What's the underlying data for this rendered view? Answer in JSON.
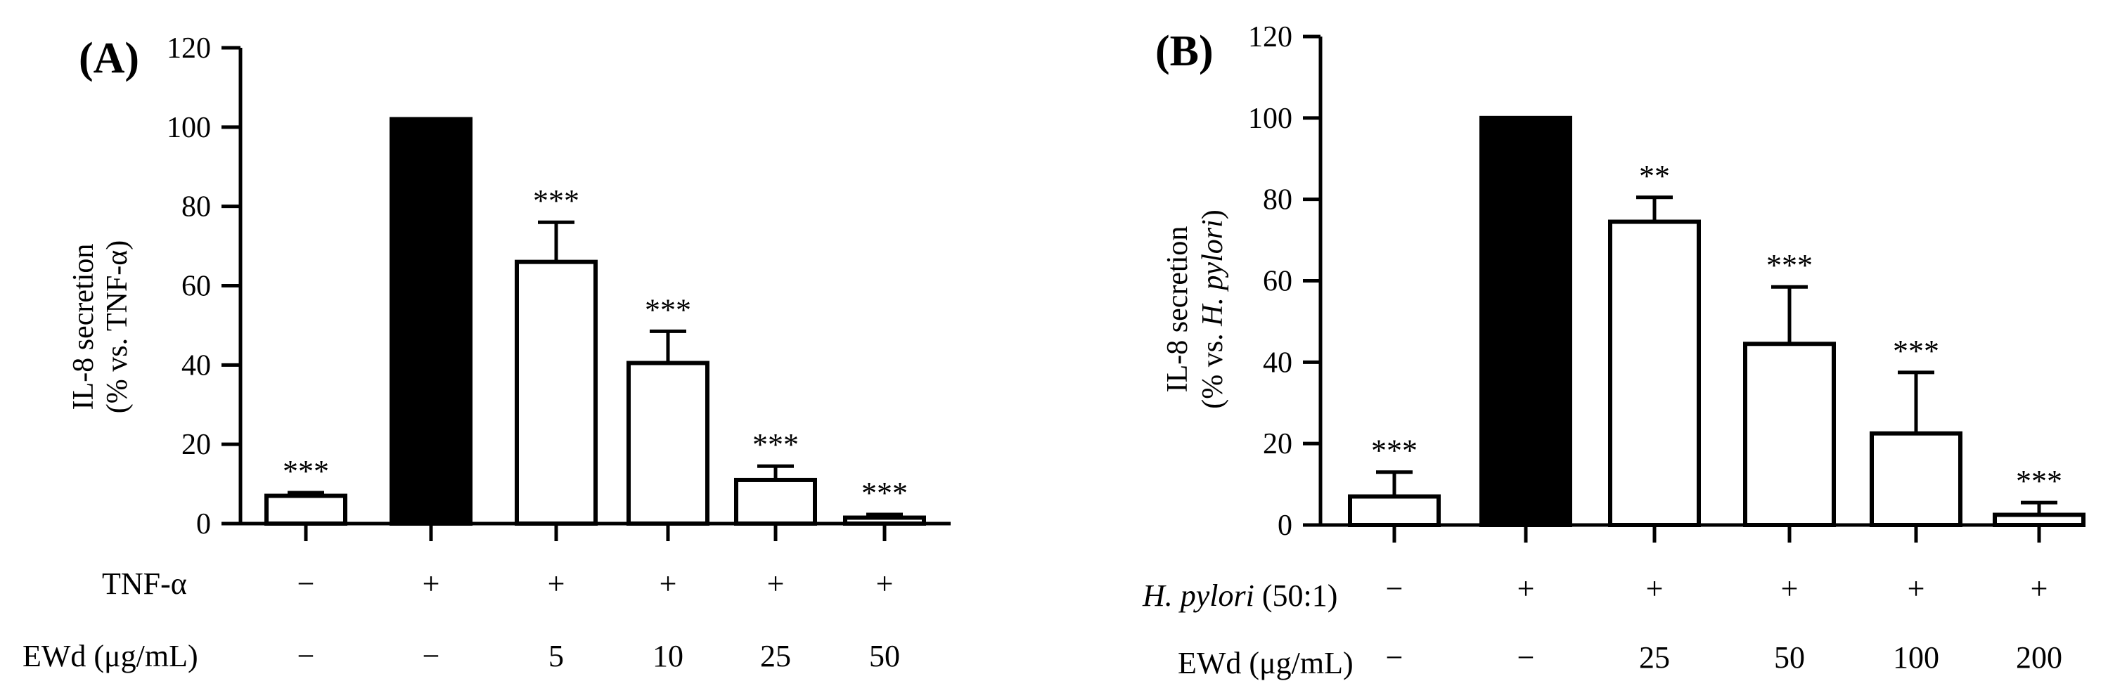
{
  "chart_data": [
    {
      "panel": "(A)",
      "type": "bar",
      "ylabel_line1": "IL-8 secretion",
      "ylabel_line2": "(% vs. TNF-α)",
      "ylim": [
        0,
        120
      ],
      "yticks": [
        "0",
        "20",
        "40",
        "60",
        "80",
        "100",
        "120"
      ],
      "values": [
        7,
        102,
        66,
        40.5,
        11,
        1.5
      ],
      "errors": [
        0.8,
        0,
        10,
        8,
        3.5,
        0.8
      ],
      "fill": [
        "white",
        "black",
        "white",
        "white",
        "white",
        "white"
      ],
      "significance": [
        "***",
        "",
        "***",
        "***",
        "***",
        "***"
      ],
      "row1_label": "TNF-α",
      "row1_values": [
        "−",
        "+",
        "+",
        "+",
        "+",
        "+"
      ],
      "row2_label": "EWd (μg/mL)",
      "row2_values": [
        "−",
        "−",
        "5",
        "10",
        "25",
        "50"
      ]
    },
    {
      "panel": "(B)",
      "type": "bar",
      "ylabel_line1": "IL-8 secretion",
      "ylabel_line2_prefix": "(% vs. ",
      "ylabel_line2_italic": "H. pylori",
      "ylabel_line2_suffix": ")",
      "ylim": [
        0,
        120
      ],
      "yticks": [
        "0",
        "20",
        "40",
        "60",
        "80",
        "100",
        "120"
      ],
      "values": [
        7,
        100,
        74.5,
        44.5,
        22.5,
        2.5
      ],
      "errors": [
        6,
        0,
        6,
        14,
        15,
        3
      ],
      "fill": [
        "white",
        "black",
        "white",
        "white",
        "white",
        "white"
      ],
      "significance": [
        "***",
        "",
        "**",
        "***",
        "***",
        "***"
      ],
      "row1_label_italic": "H. pylori",
      "row1_label_suffix": " (50:1)",
      "row1_values": [
        "−",
        "+",
        "+",
        "+",
        "+",
        "+"
      ],
      "row2_label": "EWd (μg/mL)",
      "row2_values": [
        "−",
        "−",
        "25",
        "50",
        "100",
        "200"
      ]
    }
  ]
}
